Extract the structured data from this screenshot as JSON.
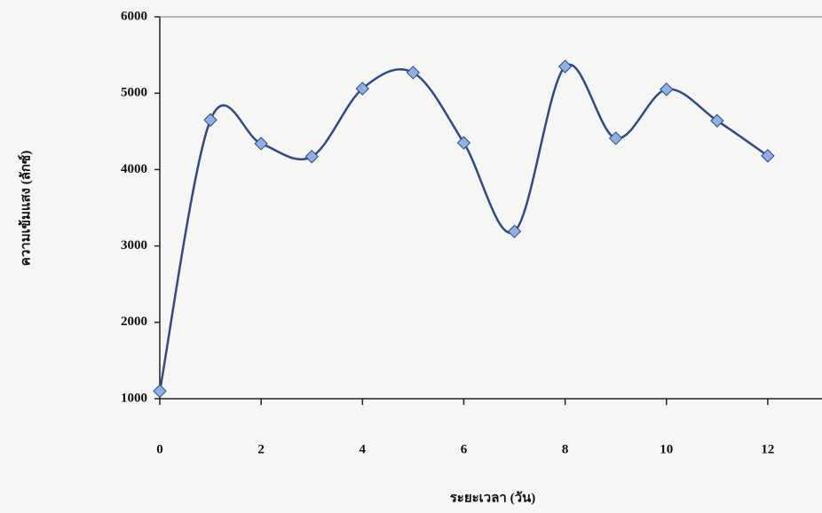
{
  "chart_data": {
    "type": "line",
    "x_label": "ระยะเวลา (วัน)",
    "y_label": "ความเข้มแสง (ลักซ์)",
    "x": [
      0,
      1,
      2,
      3,
      4,
      5,
      6,
      7,
      8,
      9,
      10,
      11,
      12
    ],
    "series": [
      {
        "name": "ความเข้มแสง",
        "color": "#2c4a8c",
        "marker_color": "#8fb1e2",
        "values": [
          1100,
          4650,
          4340,
          4170,
          5060,
          5270,
          4350,
          3190,
          5350,
          4410,
          5050,
          4640,
          4180
        ]
      }
    ],
    "xlim": [
      0,
      13
    ],
    "xticks": [
      0,
      2,
      4,
      6,
      8,
      10,
      12
    ],
    "ylim": [
      1000,
      6000
    ],
    "yticks": [
      1000,
      2000,
      3000,
      4000,
      5000,
      6000
    ],
    "grid": false,
    "smooth": true
  }
}
